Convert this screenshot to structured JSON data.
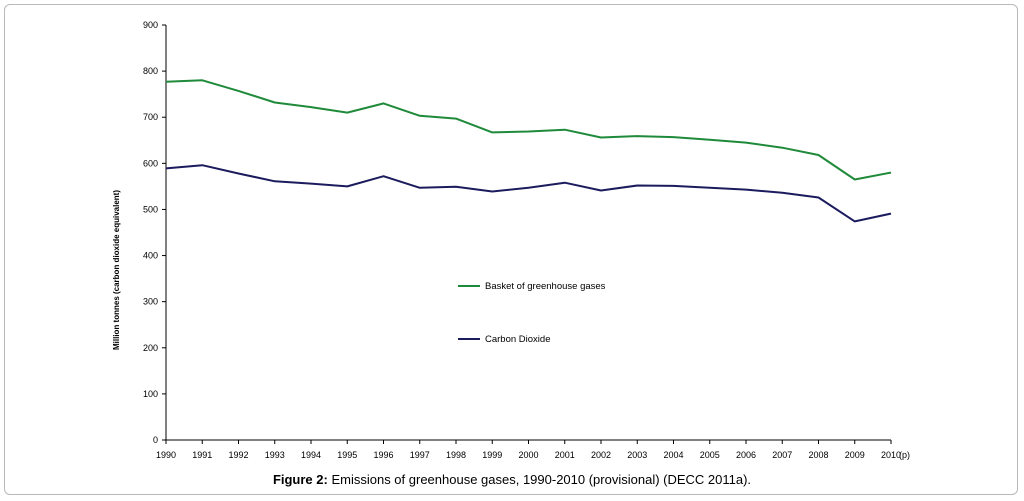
{
  "caption": {
    "label": "Figure 2:",
    "text": " Emissions of greenhouse gases, 1990-2010 (provisional) (DECC 2011a)."
  },
  "chart_data": {
    "type": "line",
    "x": [
      "1990",
      "1991",
      "1992",
      "1993",
      "1994",
      "1995",
      "1996",
      "1997",
      "1998",
      "1999",
      "2000",
      "2001",
      "2002",
      "2003",
      "2004",
      "2005",
      "2006",
      "2007",
      "2008",
      "2009",
      "2010"
    ],
    "x_suffix": "(p)",
    "ylabel": "Million tonnes (carbon dioxide equivalent)",
    "ylim": [
      0,
      900
    ],
    "yticks": [
      0,
      100,
      200,
      300,
      400,
      500,
      600,
      700,
      800,
      900
    ],
    "grid": false,
    "legend_position": "center",
    "series": [
      {
        "name": "Basket of greenhouse gases",
        "color": "#1f8a3a",
        "values": [
          777,
          780,
          757,
          732,
          722,
          710,
          730,
          703,
          697,
          667,
          669,
          673,
          656,
          659,
          657,
          651,
          645,
          634,
          618,
          565,
          580
        ]
      },
      {
        "name": "Carbon Dioxide",
        "color": "#1b1b5e",
        "values": [
          589,
          596,
          578,
          561,
          556,
          550,
          572,
          547,
          549,
          539,
          547,
          558,
          541,
          552,
          551,
          547,
          543,
          536,
          526,
          474,
          491
        ]
      }
    ]
  }
}
